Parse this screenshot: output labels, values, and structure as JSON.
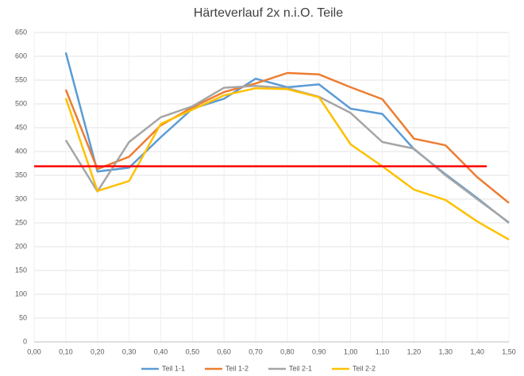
{
  "chart_data": {
    "type": "line",
    "title": "Härteverlauf 2x n.i.O. Teile",
    "x": [
      0.1,
      0.2,
      0.3,
      0.4,
      0.5,
      0.6,
      0.7,
      0.8,
      0.9,
      1.0,
      1.1,
      1.2,
      1.3,
      1.4,
      1.5
    ],
    "series": [
      {
        "name": "Teil 1-1",
        "color": "#5b9bd5",
        "values": [
          608,
          358,
          366,
          430,
          490,
          511,
          553,
          535,
          541,
          490,
          479,
          405,
          352,
          302,
          250
        ]
      },
      {
        "name": "Teil 1-2",
        "color": "#ed7d31",
        "values": [
          530,
          363,
          389,
          455,
          493,
          525,
          543,
          565,
          562,
          535,
          510,
          427,
          413,
          346,
          292
        ]
      },
      {
        "name": "Teil 2-1",
        "color": "#a5a5a5",
        "values": [
          424,
          316,
          420,
          472,
          495,
          534,
          538,
          533,
          515,
          481,
          420,
          406,
          350,
          300,
          251
        ]
      },
      {
        "name": "Teil 2-2",
        "color": "#ffc000",
        "values": [
          512,
          317,
          338,
          458,
          488,
          518,
          533,
          531,
          514,
          415,
          369,
          320,
          298,
          253,
          215
        ]
      }
    ],
    "threshold": {
      "value": 369,
      "x": [
        0,
        1.43
      ],
      "color": "#ff0000"
    },
    "xlim": [
      0,
      1.5
    ],
    "xticks": [
      {
        "value": 0,
        "label": "0,00"
      },
      {
        "value": 0.1,
        "label": "0,10"
      },
      {
        "value": 0.2,
        "label": "0,20"
      },
      {
        "value": 0.3,
        "label": "0,30"
      },
      {
        "value": 0.4,
        "label": "0,40"
      },
      {
        "value": 0.5,
        "label": "0,50"
      },
      {
        "value": 0.6,
        "label": "0,60"
      },
      {
        "value": 0.7,
        "label": "0,70"
      },
      {
        "value": 0.8,
        "label": "0,80"
      },
      {
        "value": 0.9,
        "label": "0,90"
      },
      {
        "value": 1.0,
        "label": "1,00"
      },
      {
        "value": 1.1,
        "label": "1,10"
      },
      {
        "value": 1.2,
        "label": "1,20"
      },
      {
        "value": 1.3,
        "label": "1,30"
      },
      {
        "value": 1.4,
        "label": "1,40"
      },
      {
        "value": 1.5,
        "label": "1,50"
      }
    ],
    "ylim": [
      0,
      650
    ],
    "yticks": [
      0,
      50,
      100,
      150,
      200,
      250,
      300,
      350,
      400,
      450,
      500,
      550,
      600,
      650
    ],
    "grid": true,
    "legend": "bottom"
  }
}
